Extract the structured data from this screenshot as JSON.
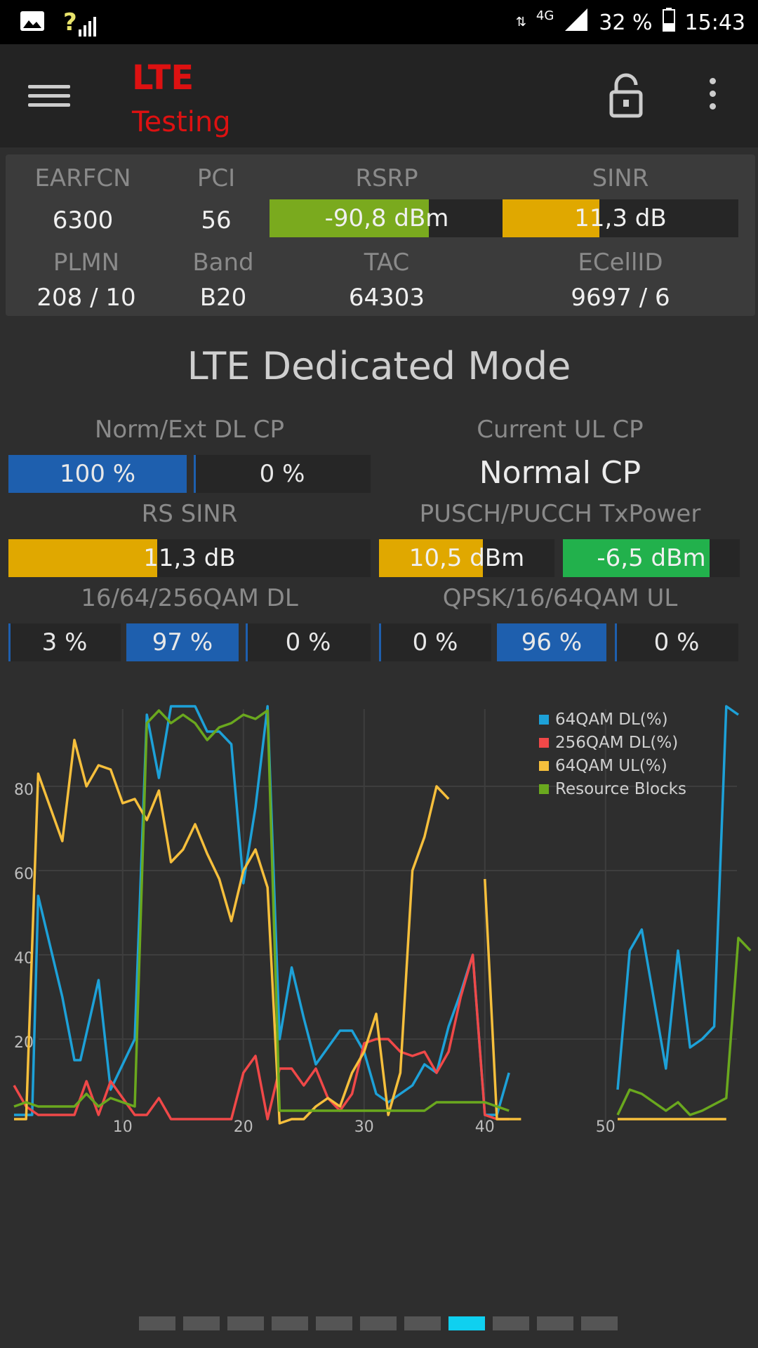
{
  "status_bar": {
    "network": "4G",
    "battery": "32 %",
    "time": "15:43"
  },
  "app_bar": {
    "title": "LTE",
    "subtitle": "Testing"
  },
  "info": {
    "earfcn_label": "EARFCN",
    "earfcn": "6300",
    "pci_label": "PCI",
    "pci": "56",
    "rsrp_label": "RSRP",
    "rsrp": "-90,8 dBm",
    "rsrp_level": 0.68,
    "rsrp_color": "#7aaa1e",
    "sinr_label": "SINR",
    "sinr": "11,3 dB",
    "sinr_level": 0.41,
    "sinr_color": "#e0a800",
    "plmn_label": "PLMN",
    "plmn": "208 / 10",
    "band_label": "Band",
    "band": "B20",
    "tac_label": "TAC",
    "tac": "64303",
    "ecellid_label": "ECellID",
    "ecellid": "9697 / 6"
  },
  "mode_title": "LTE Dedicated Mode",
  "dl_cp": {
    "label": "Norm/Ext DL CP",
    "normal": "100 %",
    "extended": "0 %"
  },
  "ul_cp": {
    "label": "Current UL CP",
    "value": "Normal CP"
  },
  "rs_sinr": {
    "label": "RS SINR",
    "value": "11,3 dB",
    "level": 0.41,
    "color": "#e0a800"
  },
  "tx_power": {
    "label": "PUSCH/PUCCH TxPower",
    "pusch": "10,5 dBm",
    "pusch_level": 0.59,
    "pusch_color": "#e0a800",
    "pucch": "-6,5 dBm",
    "pucch_level": 0.83,
    "pucch_color": "#22b14c"
  },
  "qam_dl": {
    "label": "16/64/256QAM DL",
    "values": [
      "3 %",
      "97 %",
      "0 %"
    ]
  },
  "qam_ul": {
    "label": "QPSK/16/64QAM UL",
    "values": [
      "0 %",
      "96 %",
      "0 %"
    ]
  },
  "chart_data": {
    "type": "line",
    "title": "",
    "xlabel": "",
    "ylabel": "",
    "xlim": [
      1,
      60
    ],
    "ylim": [
      0,
      100
    ],
    "x_ticks": [
      "10",
      "20",
      "30",
      "40",
      "50"
    ],
    "y_ticks": [
      "20",
      "40",
      "60",
      "80"
    ],
    "legend_position": "top-right",
    "series": [
      {
        "name": "64QAM DL(%)",
        "color": "#1da1d8",
        "segments": [
          [
            [
              1,
              2
            ],
            [
              2,
              2
            ],
            [
              2.5,
              2
            ],
            [
              3,
              54
            ],
            [
              5,
              30
            ],
            [
              6,
              15
            ],
            [
              6.5,
              15
            ],
            [
              8,
              34
            ],
            [
              9,
              8
            ],
            [
              11,
              20
            ],
            [
              12,
              97
            ],
            [
              13,
              82
            ],
            [
              14,
              99
            ],
            [
              16,
              99
            ],
            [
              17,
              93
            ],
            [
              18,
              93
            ],
            [
              19,
              90
            ],
            [
              20,
              57
            ],
            [
              21,
              75
            ],
            [
              22,
              99
            ],
            [
              23,
              20
            ],
            [
              24,
              37
            ],
            [
              25,
              25
            ],
            [
              26,
              14
            ],
            [
              28,
              22
            ],
            [
              29,
              22
            ],
            [
              30,
              17
            ],
            [
              31,
              7
            ],
            [
              32,
              5
            ],
            [
              33,
              7
            ],
            [
              34,
              9
            ],
            [
              35,
              14
            ],
            [
              36,
              12
            ],
            [
              37,
              23
            ],
            [
              38,
              31
            ],
            [
              39,
              40
            ],
            [
              40,
              2
            ],
            [
              41,
              2
            ],
            [
              42,
              12
            ]
          ],
          [
            [
              51,
              8
            ],
            [
              52,
              41
            ],
            [
              53,
              46
            ],
            [
              55,
              13
            ],
            [
              56,
              41
            ],
            [
              57,
              18
            ],
            [
              58,
              20
            ],
            [
              59,
              23
            ],
            [
              60,
              99
            ],
            [
              61,
              97
            ]
          ]
        ]
      },
      {
        "name": "256QAM DL(%)",
        "color": "#f04848",
        "segments": [
          [
            [
              1,
              9
            ],
            [
              2,
              4
            ],
            [
              3,
              2
            ],
            [
              6,
              2
            ],
            [
              7,
              10
            ],
            [
              8,
              2
            ],
            [
              9,
              10
            ],
            [
              10,
              6
            ],
            [
              11,
              2
            ],
            [
              12,
              2
            ],
            [
              13,
              6
            ],
            [
              14,
              1
            ],
            [
              17,
              1
            ],
            [
              19,
              1
            ],
            [
              20,
              12
            ],
            [
              21,
              16
            ],
            [
              22,
              1
            ],
            [
              23,
              13
            ],
            [
              24,
              13
            ],
            [
              25,
              9
            ],
            [
              26,
              13
            ],
            [
              27,
              6
            ],
            [
              28,
              3
            ],
            [
              29,
              7
            ],
            [
              30,
              19
            ],
            [
              31,
              20
            ],
            [
              32,
              20
            ],
            [
              33,
              17
            ],
            [
              34,
              16
            ],
            [
              35,
              17
            ],
            [
              36,
              12
            ],
            [
              37,
              17
            ],
            [
              38,
              30
            ],
            [
              39,
              40
            ],
            [
              40,
              2
            ],
            [
              41,
              1
            ],
            [
              42,
              1
            ]
          ]
        ]
      },
      {
        "name": "64QAM UL(%)",
        "color": "#f6bf3c",
        "segments": [
          [
            [
              1,
              1
            ],
            [
              2,
              1
            ],
            [
              3,
              83
            ],
            [
              4,
              75
            ],
            [
              5,
              67
            ],
            [
              6,
              91
            ],
            [
              7,
              80
            ],
            [
              8,
              85
            ],
            [
              9,
              84
            ],
            [
              10,
              76
            ],
            [
              11,
              77
            ],
            [
              12,
              72
            ],
            [
              13,
              79
            ],
            [
              14,
              62
            ],
            [
              15,
              65
            ],
            [
              16,
              71
            ],
            [
              17,
              64
            ],
            [
              18,
              58
            ],
            [
              19,
              48
            ],
            [
              20,
              60
            ],
            [
              21,
              65
            ],
            [
              22,
              56
            ],
            [
              23,
              0
            ],
            [
              24,
              1
            ],
            [
              25,
              1
            ],
            [
              26,
              4
            ],
            [
              27,
              6
            ],
            [
              28,
              4
            ],
            [
              29,
              12
            ],
            [
              30,
              17
            ],
            [
              31,
              26
            ],
            [
              32,
              2
            ],
            [
              33,
              12
            ],
            [
              34,
              60
            ],
            [
              35,
              68
            ],
            [
              36,
              80
            ],
            [
              37,
              77
            ]
          ],
          [
            [
              40,
              58
            ],
            [
              41,
              1
            ],
            [
              43,
              1
            ]
          ],
          [
            [
              51,
              1
            ],
            [
              60,
              1
            ]
          ]
        ]
      },
      {
        "name": "Resource Blocks",
        "color": "#6aa81e",
        "segments": [
          [
            [
              1,
              4
            ],
            [
              2,
              5
            ],
            [
              3,
              4
            ],
            [
              4,
              4
            ],
            [
              6,
              4
            ],
            [
              7,
              7
            ],
            [
              8,
              4
            ],
            [
              9,
              6
            ],
            [
              10,
              5
            ],
            [
              11,
              4
            ],
            [
              12,
              95
            ],
            [
              13,
              98
            ],
            [
              14,
              95
            ],
            [
              15,
              97
            ],
            [
              16,
              95
            ],
            [
              17,
              91
            ],
            [
              18,
              94
            ],
            [
              19,
              95
            ],
            [
              20,
              97
            ],
            [
              21,
              96
            ],
            [
              22,
              98
            ],
            [
              23,
              3
            ],
            [
              24,
              3
            ],
            [
              35,
              3
            ],
            [
              36,
              5
            ],
            [
              37,
              5
            ],
            [
              40,
              5
            ],
            [
              41,
              4
            ],
            [
              42,
              3
            ]
          ],
          [
            [
              51,
              2
            ],
            [
              52,
              8
            ],
            [
              53,
              7
            ],
            [
              55,
              3
            ],
            [
              56,
              5
            ],
            [
              57,
              2
            ],
            [
              58,
              3
            ],
            [
              60,
              6
            ],
            [
              61,
              44
            ],
            [
              62,
              41
            ]
          ]
        ]
      }
    ]
  },
  "pager": {
    "count": 11,
    "active": 7
  }
}
